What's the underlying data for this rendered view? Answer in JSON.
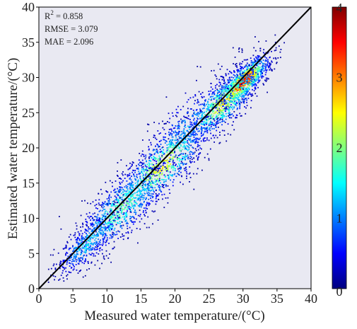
{
  "chart_data": {
    "type": "scatter",
    "subtype": "density-scatter",
    "xlabel": "Measured water temperature/(°C)",
    "ylabel": "Estimated water temperature/(°C)",
    "xlim": [
      0,
      40
    ],
    "ylim": [
      0,
      40
    ],
    "xticks": [
      "0",
      "5",
      "10",
      "15",
      "20",
      "25",
      "30",
      "35",
      "40"
    ],
    "yticks": [
      "0",
      "5",
      "10",
      "15",
      "20",
      "25",
      "30",
      "35",
      "40"
    ],
    "reference_line": {
      "type": "1:1",
      "x": [
        0,
        40
      ],
      "y": [
        0,
        40
      ],
      "color": "#000000"
    },
    "stats": {
      "r2_label": "R",
      "r2_sup": "2",
      "r2_value": " = 0.858",
      "rmse": "RMSE = 3.079",
      "mae": "MAE = 2.096"
    },
    "colorbar": {
      "colormap": "jet",
      "range": [
        0,
        4
      ],
      "ticks": [
        "0",
        "1",
        "2",
        "3",
        "4"
      ],
      "stops": [
        "#00007f",
        "#0000ff",
        "#007fff",
        "#00ffff",
        "#7fff7f",
        "#ffff00",
        "#ff7f00",
        "#ff0000",
        "#7f0000"
      ]
    },
    "density_clusters": [
      {
        "x": 30,
        "y": 29.5,
        "spread": 1.6,
        "density": 4.0,
        "weight": 0.22
      },
      {
        "x": 27,
        "y": 26.5,
        "spread": 2.5,
        "density": 2.6,
        "weight": 0.18
      },
      {
        "x": 18,
        "y": 17.5,
        "spread": 3.0,
        "density": 2.6,
        "weight": 0.22
      },
      {
        "x": 12,
        "y": 11.5,
        "spread": 3.0,
        "density": 2.0,
        "weight": 0.2
      },
      {
        "x": 7,
        "y": 6.5,
        "spread": 2.0,
        "density": 1.5,
        "weight": 0.1
      },
      {
        "x": 22,
        "y": 23,
        "spread": 3.5,
        "density": 1.2,
        "weight": 0.08
      }
    ],
    "grid": false,
    "background": "#e9e9f2"
  }
}
